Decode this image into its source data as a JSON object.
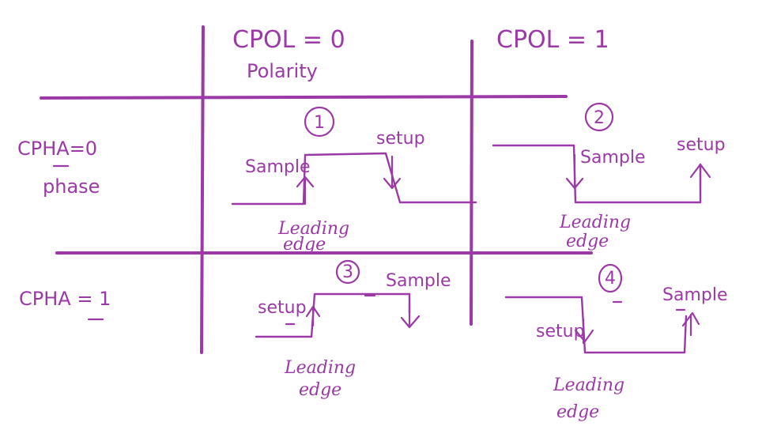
{
  "headers": {
    "cpol0": "CPOL = 0",
    "cpol0_sub": "Polarity",
    "cpol1": "CPOL = 1",
    "cpha0": "CPHA=0",
    "cpha0_sub": "phase",
    "cpha1": "CPHA = 1"
  },
  "cells": [
    {
      "id": "cell-1",
      "number": "1",
      "left_label": "Sample",
      "right_label": "setup",
      "edge_line1": "Leading",
      "edge_line2": "edge"
    },
    {
      "id": "cell-2",
      "number": "2",
      "left_label": "Sample",
      "right_label": "setup",
      "edge_line1": "Leading",
      "edge_line2": "edge"
    },
    {
      "id": "cell-3",
      "number": "3",
      "left_label": "setup",
      "right_label": "Sample",
      "edge_line1": "Leading",
      "edge_line2": "edge"
    },
    {
      "id": "cell-4",
      "number": "4",
      "left_label": "setup",
      "right_label": "Sample",
      "edge_line1": "Leading",
      "edge_line2": "edge"
    }
  ],
  "ink_color": "#9b3aa6"
}
